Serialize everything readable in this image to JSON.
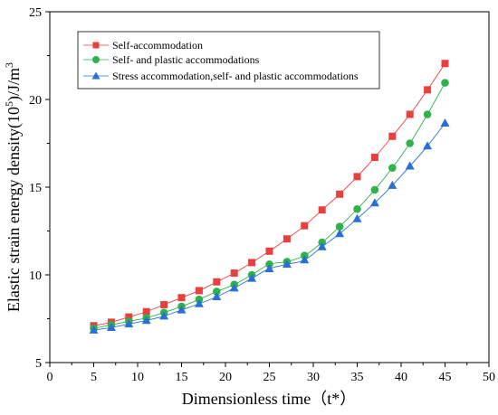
{
  "chart_data": {
    "type": "line",
    "title": "",
    "xlabel": "Dimensionless time（t*）",
    "ylabel_main": "Elastic strain energy density(10",
    "ylabel_sup": "5",
    "ylabel_unit": ")/J/m",
    "ylabel_unit_sup": "3",
    "xlim": [
      0,
      50
    ],
    "ylim": [
      5,
      25
    ],
    "xticks": [
      "0",
      "5",
      "10",
      "15",
      "20",
      "25",
      "30",
      "35",
      "40",
      "45",
      "50"
    ],
    "yticks": [
      "5",
      "10",
      "15",
      "20",
      "25"
    ],
    "grid": false,
    "legend_placement": "top-left",
    "x": [
      5,
      7,
      9,
      11,
      13,
      15,
      17,
      19,
      21,
      23,
      25,
      27,
      29,
      31,
      33,
      35,
      37,
      39,
      41,
      43,
      45
    ],
    "series": [
      {
        "name": "Self-accommodation",
        "color": "#e8403f",
        "marker": "square",
        "values": [
          7.1,
          7.3,
          7.6,
          7.9,
          8.3,
          8.7,
          9.1,
          9.6,
          10.1,
          10.7,
          11.35,
          12.05,
          12.8,
          13.7,
          14.6,
          15.6,
          16.7,
          17.9,
          19.15,
          20.55,
          22.05
        ]
      },
      {
        "name": "Self- and plastic accommodations",
        "color": "#2fb24a",
        "marker": "circle",
        "values": [
          6.95,
          7.15,
          7.35,
          7.55,
          7.85,
          8.2,
          8.6,
          9.05,
          9.45,
          10.0,
          10.6,
          10.75,
          11.1,
          11.85,
          12.75,
          13.75,
          14.85,
          16.1,
          17.5,
          19.15,
          20.95
        ]
      },
      {
        "name": "Stress accommodation,self- and plastic accommodations",
        "color": "#2a6fd3",
        "marker": "triangle",
        "values": [
          6.85,
          7.0,
          7.2,
          7.4,
          7.65,
          8.0,
          8.35,
          8.75,
          9.25,
          9.8,
          10.35,
          10.6,
          10.85,
          11.6,
          12.35,
          13.2,
          14.1,
          15.1,
          16.2,
          17.35,
          18.65
        ]
      }
    ]
  }
}
